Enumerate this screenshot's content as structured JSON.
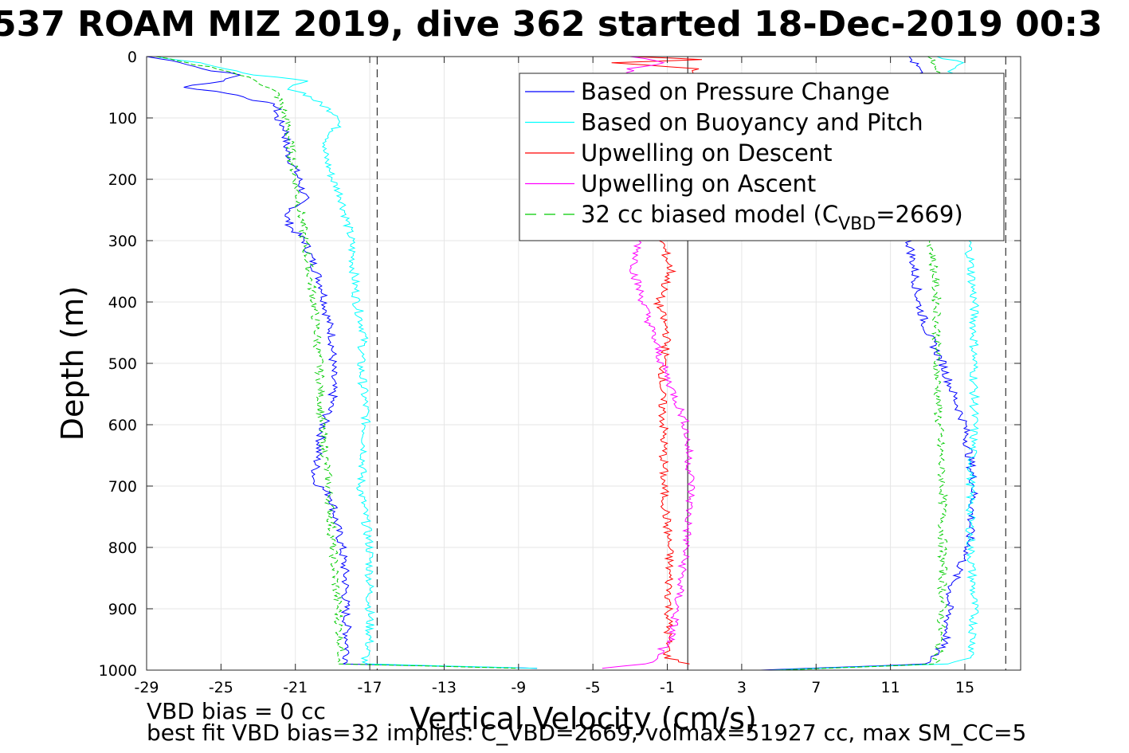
{
  "chart_data": {
    "type": "line",
    "title": "537 ROAM MIZ 2019, dive 362 started 18-Dec-2019 00:3",
    "xlabel": "Vertical Velocity (cm/s)",
    "ylabel": "Depth (m)",
    "xlim": [
      -29,
      18
    ],
    "ylim": [
      0,
      1000
    ],
    "y_reversed": true,
    "grid": true,
    "x_ticks": [
      "-29",
      "-25",
      "-21",
      "-17",
      "-13",
      "-9",
      "-5",
      "-1",
      "3",
      "7",
      "11",
      "15"
    ],
    "y_ticks": [
      "0",
      "100",
      "200",
      "300",
      "400",
      "500",
      "600",
      "700",
      "800",
      "900",
      "1000"
    ],
    "reference_lines": [
      {
        "x": -16.6,
        "style": "dashed"
      },
      {
        "x": 17.2,
        "style": "dashed"
      },
      {
        "x": 0.1,
        "style": "solid"
      }
    ],
    "legend_position": "top-right",
    "legend": [
      {
        "label": "Based on Pressure Change",
        "color": "#0000ff",
        "dash": false
      },
      {
        "label": "Based on Buoyancy and Pitch",
        "color": "#00ffff",
        "dash": false
      },
      {
        "label": "Upwelling on Descent",
        "color": "#ff0000",
        "dash": false
      },
      {
        "label": "Upwelling on Ascent",
        "color": "#ff00ff",
        "dash": false
      },
      {
        "label_prefix": "32 cc biased model (C",
        "label_sub": "VBD",
        "label_suffix": "=2669)",
        "color": "#00cc00",
        "dash": true
      }
    ],
    "series": [
      {
        "name": "Based on Pressure Change (descent)",
        "color": "#0000ff",
        "depth": [
          0,
          10,
          20,
          30,
          40,
          50,
          60,
          80,
          100,
          120,
          150,
          200,
          230,
          260,
          280,
          300,
          340,
          380,
          420,
          460,
          500,
          560,
          600,
          650,
          690,
          720,
          760,
          800,
          850,
          900,
          950,
          990,
          997
        ],
        "velocity": [
          -29,
          -27,
          -26,
          -24,
          -25,
          -27,
          -24.5,
          -22,
          -22,
          -21.5,
          -21.5,
          -20.8,
          -20.5,
          -21.5,
          -21.2,
          -20.5,
          -20,
          -19.5,
          -19.3,
          -19,
          -19,
          -19,
          -19.5,
          -19.8,
          -20,
          -19,
          -18.8,
          -18.5,
          -18.3,
          -18.3,
          -18.2,
          -18.2,
          -8
        ]
      },
      {
        "name": "Based on Buoyancy and Pitch (descent)",
        "color": "#00ffff",
        "depth": [
          0,
          10,
          20,
          30,
          40,
          50,
          60,
          80,
          100,
          150,
          200,
          230,
          300,
          400,
          450,
          500,
          580,
          650,
          700,
          760,
          800,
          900,
          950,
          990,
          997
        ],
        "velocity": [
          -28.5,
          -26,
          -25,
          -23,
          -20.5,
          -21.5,
          -20.5,
          -19.5,
          -18.5,
          -19.5,
          -19,
          -18.5,
          -18,
          -17.7,
          -17.3,
          -17.5,
          -17.2,
          -17.3,
          -17.5,
          -17.2,
          -17,
          -17,
          -17,
          -17.3,
          -8
        ]
      },
      {
        "name": "32 cc biased model (descent)",
        "color": "#00cc00",
        "depth": [
          0,
          10,
          20,
          30,
          40,
          60,
          100,
          200,
          300,
          400,
          500,
          600,
          700,
          800,
          900,
          990,
          997
        ],
        "velocity": [
          -28.5,
          -27,
          -25,
          -24,
          -23,
          -22,
          -21.5,
          -21,
          -20.5,
          -20,
          -19.7,
          -19.6,
          -19.2,
          -19,
          -18.7,
          -18.5,
          -9
        ]
      },
      {
        "name": "Based on Pressure Change (ascent)",
        "color": "#0000ff",
        "depth": [
          0,
          20,
          300,
          350,
          400,
          450,
          500,
          560,
          600,
          700,
          800,
          870,
          950,
          990,
          1000
        ],
        "velocity": [
          12,
          12.5,
          12,
          12.3,
          12.5,
          13,
          13.8,
          14.5,
          15,
          15.5,
          15.2,
          14.2,
          14,
          13,
          4
        ]
      },
      {
        "name": "Based on Buoyancy and Pitch (ascent)",
        "color": "#00ffff",
        "depth": [
          0,
          10,
          30,
          300,
          400,
          500,
          600,
          700,
          800,
          900,
          980,
          990,
          1000
        ],
        "velocity": [
          13.5,
          15,
          14,
          15.2,
          15.5,
          15.5,
          15.5,
          15.3,
          15.3,
          15.5,
          15.4,
          14,
          4.5
        ]
      },
      {
        "name": "32 cc biased model (ascent)",
        "color": "#00cc00",
        "depth": [
          0,
          20,
          300,
          400,
          500,
          600,
          700,
          800,
          900,
          990,
          1000
        ],
        "velocity": [
          13,
          13.5,
          13.2,
          13.5,
          13.5,
          13.6,
          13.8,
          13.8,
          13.8,
          13.5,
          5
        ]
      },
      {
        "name": "Upwelling on Descent",
        "color": "#ff0000",
        "depth": [
          0,
          5,
          10,
          20,
          300,
          350,
          400,
          450,
          500,
          550,
          600,
          700,
          800,
          900,
          980,
          990
        ],
        "velocity": [
          -3,
          1,
          -4,
          0.5,
          -1.3,
          -0.8,
          -1.5,
          -1,
          -1.2,
          -1.3,
          -1.2,
          -1.2,
          -0.9,
          -0.9,
          -1,
          0.2
        ]
      },
      {
        "name": "Upwelling on Ascent",
        "color": "#ff00ff",
        "depth": [
          0,
          10,
          20,
          300,
          350,
          400,
          450,
          500,
          560,
          600,
          700,
          800,
          900,
          950,
          990,
          997
        ],
        "velocity": [
          -3,
          -1,
          -3,
          -2.5,
          -2.8,
          -2.3,
          -1.8,
          -1.3,
          -0.5,
          0,
          0.3,
          0,
          -0.5,
          -0.8,
          -2,
          -4.5
        ]
      }
    ]
  },
  "footer": {
    "line1": "VBD bias = 0 cc",
    "line2": "best fit VBD bias=32 implies: C_VBD=2669, volmax=51927 cc, max SM_CC=5"
  }
}
